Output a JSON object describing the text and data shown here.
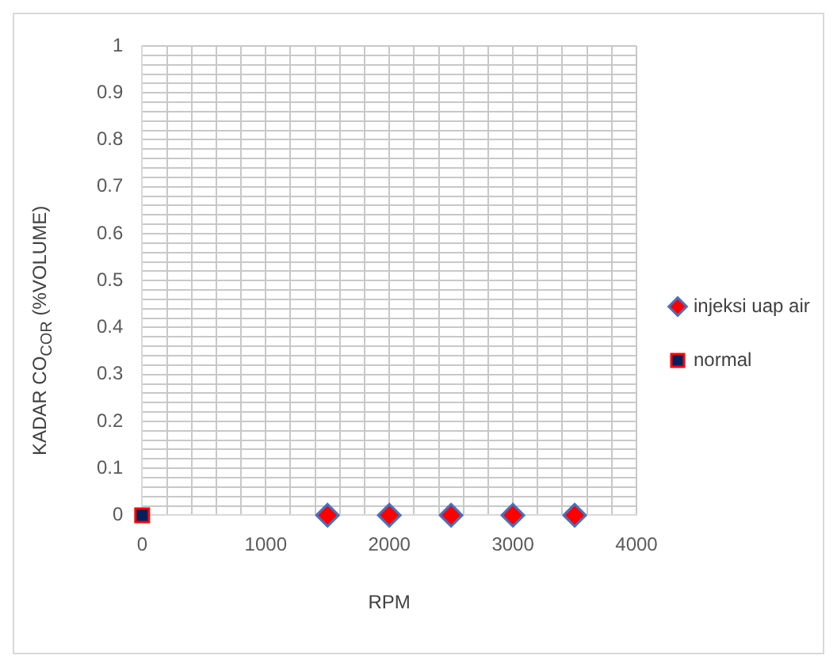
{
  "chart_data": {
    "type": "scatter",
    "xlabel": "RPM",
    "ylabel": "KADAR CO$_{COR}$ (%VOLUME)",
    "xlim": [
      0,
      4000
    ],
    "xticks": [
      0,
      {
        "value": 200,
        "label": null
      },
      {
        "value": 400,
        "label": null
      },
      {
        "value": 600,
        "label": null
      },
      {
        "value": 800,
        "label": null
      },
      1000,
      {
        "value": 1200,
        "label": null
      },
      {
        "value": 1400,
        "label": null
      },
      {
        "value": 1600,
        "label": null
      },
      {
        "value": 1800,
        "label": null
      },
      2000,
      {
        "value": 2200,
        "label": null
      },
      {
        "value": 2400,
        "label": null
      },
      {
        "value": 2600,
        "label": null
      },
      {
        "value": 2800,
        "label": null
      },
      3000,
      {
        "value": 3200,
        "label": null
      },
      {
        "value": 3400,
        "label": null
      },
      {
        "value": 3600,
        "label": null
      },
      {
        "value": 3800,
        "label": null
      },
      4000
    ],
    "ylim": [
      0,
      1
    ],
    "yticks": [
      0,
      {
        "value": 0.02,
        "label": null
      },
      {
        "value": 0.04,
        "label": null
      },
      {
        "value": 0.06,
        "label": null
      },
      {
        "value": 0.08,
        "label": null
      },
      0.1,
      {
        "value": 0.12,
        "label": null
      },
      {
        "value": 0.14,
        "label": null
      },
      {
        "value": 0.16,
        "label": null
      },
      {
        "value": 0.18,
        "label": null
      },
      0.2,
      {
        "value": 0.22,
        "label": null
      },
      {
        "value": 0.24,
        "label": null
      },
      {
        "value": 0.26,
        "label": null
      },
      {
        "value": 0.28,
        "label": null
      },
      0.3,
      {
        "value": 0.32,
        "label": null
      },
      {
        "value": 0.34,
        "label": null
      },
      {
        "value": 0.36,
        "label": null
      },
      {
        "value": 0.38,
        "label": null
      },
      0.4,
      {
        "value": 0.42,
        "label": null
      },
      {
        "value": 0.44,
        "label": null
      },
      {
        "value": 0.46,
        "label": null
      },
      {
        "value": 0.48,
        "label": null
      },
      0.5,
      {
        "value": 0.52,
        "label": null
      },
      {
        "value": 0.54,
        "label": null
      },
      {
        "value": 0.56,
        "label": null
      },
      {
        "value": 0.58,
        "label": null
      },
      0.6,
      {
        "value": 0.62,
        "label": null
      },
      {
        "value": 0.64,
        "label": null
      },
      {
        "value": 0.66,
        "label": null
      },
      {
        "value": 0.68,
        "label": null
      },
      0.7,
      {
        "value": 0.72,
        "label": null
      },
      {
        "value": 0.74,
        "label": null
      },
      {
        "value": 0.76,
        "label": null
      },
      {
        "value": 0.78,
        "label": null
      },
      0.8,
      {
        "value": 0.82,
        "label": null
      },
      {
        "value": 0.84,
        "label": null
      },
      {
        "value": 0.86,
        "label": null
      },
      {
        "value": 0.88,
        "label": null
      },
      0.9,
      {
        "value": 0.92,
        "label": null
      },
      {
        "value": 0.94,
        "label": null
      },
      {
        "value": 0.96,
        "label": null
      },
      {
        "value": 0.98,
        "label": null
      },
      1
    ],
    "grid": true,
    "legend": "right",
    "series": [
      {
        "name": "injeksi uap air",
        "color": "#ff0000",
        "marker": "diamond",
        "x": [
          1500,
          2000,
          2500,
          3000,
          3500
        ],
        "values": [
          0,
          0,
          0,
          0,
          0
        ]
      },
      {
        "name": "normal",
        "color": "#002060",
        "marker": "square",
        "x": [
          0
        ],
        "values": [
          0
        ]
      }
    ]
  }
}
